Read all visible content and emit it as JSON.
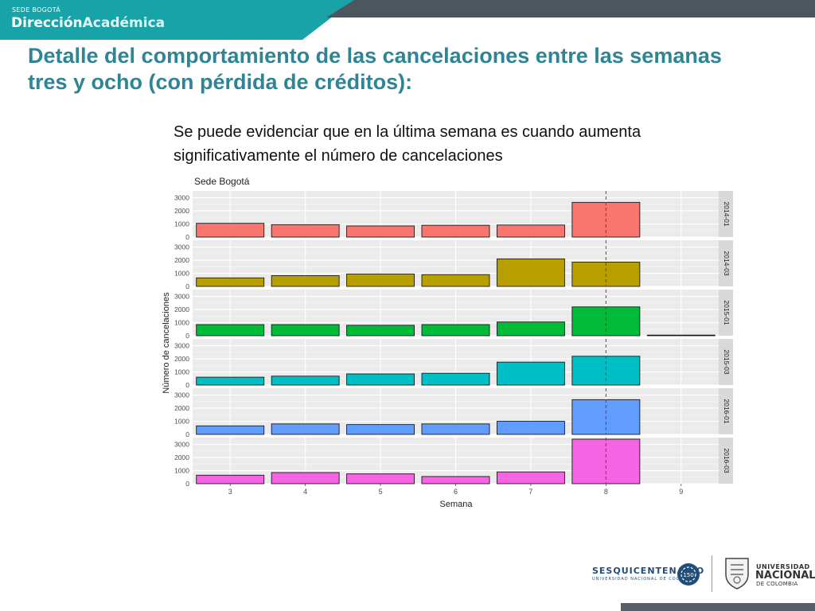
{
  "header": {
    "sede": "SEDE BOGOTÁ",
    "brand_part1": "Dirección",
    "brand_part2": "Académica",
    "colors": {
      "teal": "#18a3a8",
      "dark": "#4d565e"
    }
  },
  "title": "Detalle del comportamiento de las cancelaciones entre las semanas tres y ocho (con pérdida de créditos):",
  "note": "Se puede evidenciar que en la última semana es cuando aumenta significativamente el número de cancelaciones",
  "footer": {
    "sesqui": "SESQUICENTENARIO",
    "sesqui_sub": "UNIVERSIDAD NACIONAL DE COLOMBIA",
    "un_line1": "UNIVERSIDAD",
    "un_line2": "NACIONAL",
    "un_line3": "DE COLOMBIA",
    "sesqui_mark_text": "150"
  },
  "chart_data": {
    "type": "bar",
    "title": "Sede Bogotá",
    "xlabel": "Semana",
    "ylabel": "Número de cancelaciones",
    "categories": [
      "3",
      "4",
      "5",
      "6",
      "7",
      "8",
      "9"
    ],
    "ylim": [
      0,
      3400
    ],
    "yticks": [
      0,
      1000,
      2000,
      3000
    ],
    "vline_x": "8",
    "vline_color": "#b22222",
    "grid": true,
    "facets": [
      {
        "name": "2014-01",
        "color": "#f8766d",
        "values": [
          1050,
          950,
          850,
          900,
          920,
          2650,
          null
        ]
      },
      {
        "name": "2014-03",
        "color": "#b79f00",
        "values": [
          650,
          820,
          950,
          900,
          2100,
          1850,
          null
        ]
      },
      {
        "name": "2015-01",
        "color": "#00ba38",
        "values": [
          850,
          850,
          800,
          850,
          1050,
          2200,
          40
        ]
      },
      {
        "name": "2015-03",
        "color": "#00bfc4",
        "values": [
          600,
          680,
          850,
          900,
          1750,
          2200,
          null
        ]
      },
      {
        "name": "2016-01",
        "color": "#619cff",
        "values": [
          650,
          800,
          750,
          800,
          1000,
          2650,
          null
        ]
      },
      {
        "name": "2016-03",
        "color": "#f564e3",
        "values": [
          650,
          850,
          750,
          550,
          900,
          3400,
          null
        ]
      }
    ]
  }
}
